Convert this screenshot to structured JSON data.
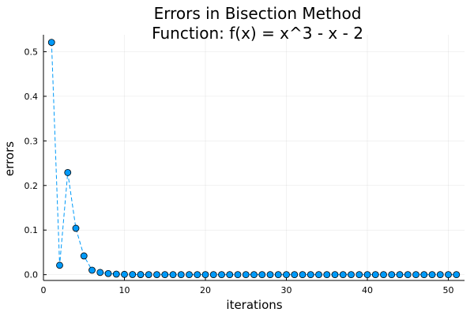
{
  "chart_data": {
    "type": "scatter",
    "title": "Errors in Bisection Method",
    "subtitle": "Function: f(x) = x^3 - x - 2",
    "xlabel": "iterations",
    "ylabel": "errors",
    "xlim": [
      0,
      52
    ],
    "ylim": [
      -0.013,
      0.538
    ],
    "xticks": [
      0,
      10,
      20,
      30,
      40,
      50
    ],
    "yticks": [
      0.0,
      0.1,
      0.2,
      0.3,
      0.4,
      0.5
    ],
    "xtick_labels": [
      "0",
      "10",
      "20",
      "30",
      "40",
      "50"
    ],
    "ytick_labels": [
      "0.0",
      "0.1",
      "0.2",
      "0.3",
      "0.4",
      "0.5"
    ],
    "grid": true,
    "legend": false,
    "line_style": "dashed",
    "marker": "circle",
    "color": "#009af9",
    "series": [
      {
        "x": [
          1,
          2,
          3,
          4,
          5,
          6,
          7,
          8,
          9,
          10,
          11,
          12,
          13,
          14,
          15,
          16,
          17,
          18,
          19,
          20,
          21,
          22,
          23,
          24,
          25,
          26,
          27,
          28,
          29,
          30,
          31,
          32,
          33,
          34,
          35,
          36,
          37,
          38,
          39,
          40,
          41,
          42,
          43,
          44,
          45,
          46,
          47,
          48,
          49,
          50,
          51
        ],
        "values": [
          0.521,
          0.021,
          0.229,
          0.104,
          0.042,
          0.01,
          0.005,
          0.0025,
          0.0012,
          0.0006,
          0.0003,
          0.00015,
          8e-05,
          4e-05,
          2e-05,
          1e-05,
          0,
          0,
          0,
          0,
          0,
          0,
          0,
          0,
          0,
          0,
          0,
          0,
          0,
          0,
          0,
          0,
          0,
          0,
          0,
          0,
          0,
          0,
          0,
          0,
          0,
          0,
          0,
          0,
          0,
          0,
          0,
          0,
          0,
          0,
          0
        ]
      }
    ]
  }
}
